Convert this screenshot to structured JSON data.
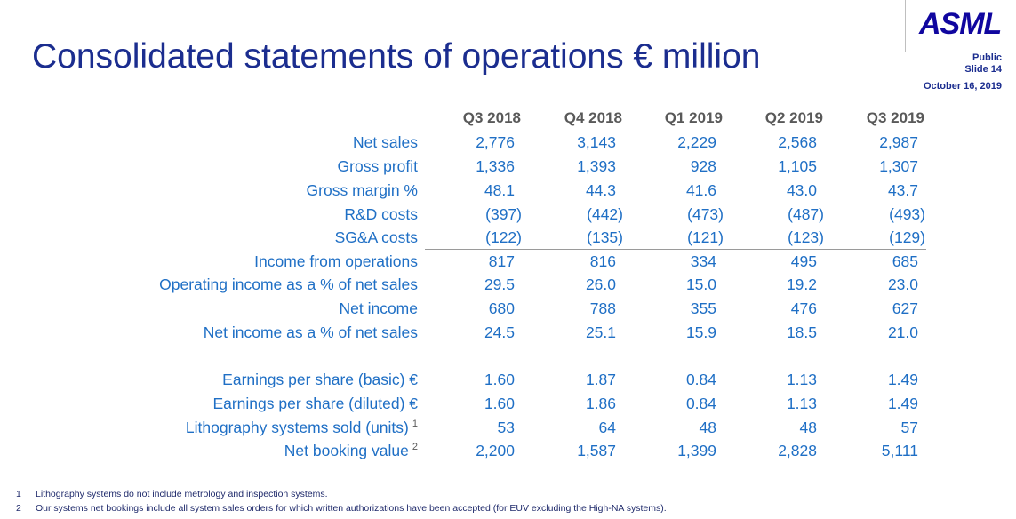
{
  "slide": {
    "title": "Consolidated statements of operations € million",
    "logo_text": "ASML",
    "classification": "Public",
    "slide_label": "Slide 14",
    "date": "October 16, 2019",
    "accent_color": "#1b2d8f",
    "value_color": "#1f6fc5"
  },
  "table": {
    "columns": [
      "Q3 2018",
      "Q4 2018",
      "Q1 2019",
      "Q2 2019",
      "Q3 2019"
    ],
    "rows": [
      {
        "label": "Net sales",
        "note": "",
        "values": [
          "2,776",
          "3,143",
          "2,229",
          "2,568",
          "2,987"
        ]
      },
      {
        "label": "Gross profit",
        "note": "",
        "values": [
          "1,336",
          "1,393",
          "928",
          "1,105",
          "1,307"
        ]
      },
      {
        "label": "Gross margin %",
        "note": "",
        "values": [
          "48.1",
          "44.3",
          "41.6",
          "43.0",
          "43.7"
        ]
      },
      {
        "label": "R&D costs",
        "note": "",
        "values": [
          "(397)",
          "(442)",
          "(473)",
          "(487)",
          "(493)"
        ]
      },
      {
        "label": "SG&A costs",
        "note": "",
        "values": [
          "(122)",
          "(135)",
          "(121)",
          "(123)",
          "(129)"
        ]
      },
      {
        "label": "Income from operations",
        "note": "",
        "values": [
          "817",
          "816",
          "334",
          "495",
          "685"
        ]
      },
      {
        "label": "Operating income as a % of net sales",
        "note": "",
        "values": [
          "29.5",
          "26.0",
          "15.0",
          "19.2",
          "23.0"
        ]
      },
      {
        "label": "Net income",
        "note": "",
        "values": [
          "680",
          "788",
          "355",
          "476",
          "627"
        ]
      },
      {
        "label": "Net income as a % of net sales",
        "note": "",
        "values": [
          "24.5",
          "25.1",
          "15.9",
          "18.5",
          "21.0"
        ]
      },
      {
        "label": "Earnings per share (basic) €",
        "note": "",
        "values": [
          "1.60",
          "1.87",
          "0.84",
          "1.13",
          "1.49"
        ]
      },
      {
        "label": "Earnings per share (diluted) €",
        "note": "",
        "values": [
          "1.60",
          "1.86",
          "0.84",
          "1.13",
          "1.49"
        ]
      },
      {
        "label": "Lithography systems sold (units)",
        "note": "1",
        "values": [
          "53",
          "64",
          "48",
          "48",
          "57"
        ]
      },
      {
        "label": "Net booking value",
        "note": "2",
        "values": [
          "2,200",
          "1,587",
          "1,399",
          "2,828",
          "5,111"
        ]
      }
    ]
  },
  "footnotes": [
    {
      "number": "1",
      "text": "Lithography systems do not include metrology and inspection systems."
    },
    {
      "number": "2",
      "text": "Our systems net bookings include all system sales orders for which written authorizations have been accepted (for EUV excluding the High-NA systems)."
    }
  ]
}
